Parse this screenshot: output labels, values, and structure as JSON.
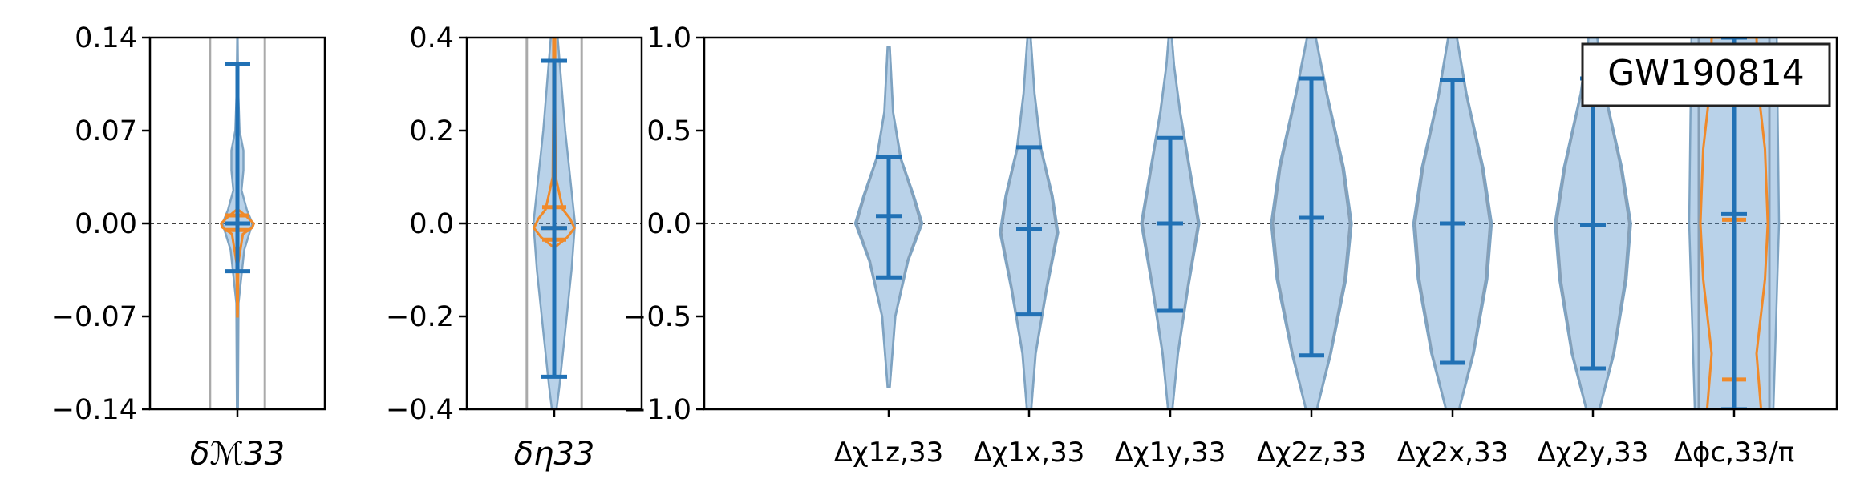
{
  "figure_label": "GW190814",
  "colors": {
    "violin_fill": "#4f8fc7",
    "violin_edge": "#7ea3c2",
    "bar": "#2171b5",
    "orange": "#f08a2a",
    "grey": "#aaaaaa",
    "zero_line": "#000000"
  },
  "chart_data": [
    {
      "type": "violin",
      "panel": "chirp-mass",
      "title": "",
      "xlabel": "",
      "ylabel": "",
      "categories": [
        "δℳ33"
      ],
      "ylim": [
        -0.14,
        0.14
      ],
      "yticks": [
        "0.14",
        "0.07",
        "0.00",
        "−0.07",
        "−0.14"
      ],
      "reference_line_y": 0,
      "violins": [
        {
          "blue": {
            "min": -0.036,
            "median": 0.0,
            "max": 0.12,
            "width_profile": [
              [
                -0.14,
                0.02
              ],
              [
                -0.06,
                0.04
              ],
              [
                -0.02,
                0.25
              ],
              [
                0.0,
                0.55
              ],
              [
                0.01,
                0.35
              ],
              [
                0.025,
                0.15
              ],
              [
                0.04,
                0.22
              ],
              [
                0.055,
                0.22
              ],
              [
                0.07,
                0.08
              ],
              [
                0.1,
                0.03
              ],
              [
                0.14,
                0.01
              ]
            ]
          },
          "orange": {
            "min": -0.005,
            "median": 0.0,
            "max": 0.006,
            "width_profile": [
              [
                -0.07,
                0.01
              ],
              [
                -0.03,
                0.03
              ],
              [
                -0.008,
                0.2
              ],
              [
                -0.003,
                0.55
              ],
              [
                0.0,
                0.6
              ],
              [
                0.004,
                0.4
              ],
              [
                0.01,
                0.05
              ]
            ]
          },
          "grey_width": 0.95
        }
      ]
    },
    {
      "type": "violin",
      "panel": "symmetric-mass-ratio",
      "title": "",
      "xlabel": "",
      "ylabel": "",
      "categories": [
        "δη33"
      ],
      "ylim": [
        -0.4,
        0.4
      ],
      "yticks": [
        "0.4",
        "0.2",
        "0.0",
        "−0.2",
        "−0.4"
      ],
      "reference_line_y": 0,
      "violins": [
        {
          "blue": {
            "min": -0.33,
            "median": -0.01,
            "max": 0.35,
            "width_profile": [
              [
                -0.4,
                0.08
              ],
              [
                -0.35,
                0.18
              ],
              [
                -0.25,
                0.35
              ],
              [
                -0.1,
                0.6
              ],
              [
                0.0,
                0.72
              ],
              [
                0.1,
                0.55
              ],
              [
                0.2,
                0.38
              ],
              [
                0.3,
                0.25
              ],
              [
                0.4,
                0.12
              ]
            ]
          },
          "orange": {
            "min": -0.035,
            "median": -0.01,
            "max": 0.035,
            "width_profile": [
              [
                -0.05,
                0.05
              ],
              [
                -0.03,
                0.45
              ],
              [
                -0.01,
                0.7
              ],
              [
                0.01,
                0.55
              ],
              [
                0.03,
                0.3
              ],
              [
                0.1,
                0.05
              ],
              [
                0.25,
                0.03
              ],
              [
                0.4,
                0.03
              ]
            ]
          },
          "grey_width": 0.95
        }
      ]
    },
    {
      "type": "violin",
      "panel": "spin-and-phase",
      "title": "",
      "xlabel": "",
      "ylabel": "",
      "categories": [
        "Δχ1z,33",
        "Δχ1x,33",
        "Δχ1y,33",
        "Δχ2z,33",
        "Δχ2x,33",
        "Δχ2y,33",
        "Δϕc,33/π"
      ],
      "ylim": [
        -1.0,
        1.0
      ],
      "yticks": [
        "1.0",
        "0.5",
        "0.0",
        "−0.5",
        "−1.0"
      ],
      "reference_line_y": 0,
      "violins": [
        {
          "blue": {
            "min": -0.29,
            "median": 0.04,
            "max": 0.36,
            "width_profile": [
              [
                -0.88,
                0.02
              ],
              [
                -0.5,
                0.12
              ],
              [
                -0.2,
                0.35
              ],
              [
                0.0,
                0.6
              ],
              [
                0.15,
                0.45
              ],
              [
                0.35,
                0.22
              ],
              [
                0.6,
                0.08
              ],
              [
                0.95,
                0.02
              ]
            ]
          }
        },
        {
          "blue": {
            "min": -0.49,
            "median": -0.03,
            "max": 0.41,
            "width_profile": [
              [
                -1.0,
                0.04
              ],
              [
                -0.7,
                0.12
              ],
              [
                -0.35,
                0.32
              ],
              [
                -0.05,
                0.52
              ],
              [
                0.15,
                0.42
              ],
              [
                0.4,
                0.22
              ],
              [
                0.7,
                0.1
              ],
              [
                1.0,
                0.03
              ]
            ]
          }
        },
        {
          "blue": {
            "min": -0.47,
            "median": 0.0,
            "max": 0.46,
            "width_profile": [
              [
                -1.0,
                0.04
              ],
              [
                -0.7,
                0.14
              ],
              [
                -0.35,
                0.32
              ],
              [
                0.0,
                0.52
              ],
              [
                0.3,
                0.35
              ],
              [
                0.6,
                0.18
              ],
              [
                0.85,
                0.07
              ],
              [
                1.0,
                0.03
              ]
            ]
          }
        },
        {
          "blue": {
            "min": -0.71,
            "median": 0.03,
            "max": 0.78,
            "width_profile": [
              [
                -1.0,
                0.1
              ],
              [
                -0.7,
                0.35
              ],
              [
                -0.3,
                0.62
              ],
              [
                0.0,
                0.72
              ],
              [
                0.3,
                0.58
              ],
              [
                0.7,
                0.28
              ],
              [
                1.0,
                0.08
              ]
            ]
          }
        },
        {
          "blue": {
            "min": -0.75,
            "median": 0.0,
            "max": 0.77,
            "width_profile": [
              [
                -1.0,
                0.12
              ],
              [
                -0.7,
                0.38
              ],
              [
                -0.3,
                0.62
              ],
              [
                0.0,
                0.7
              ],
              [
                0.3,
                0.55
              ],
              [
                0.7,
                0.25
              ],
              [
                1.0,
                0.08
              ]
            ]
          }
        },
        {
          "blue": {
            "min": -0.78,
            "median": -0.01,
            "max": 0.78,
            "width_profile": [
              [
                -1.0,
                0.12
              ],
              [
                -0.7,
                0.38
              ],
              [
                -0.3,
                0.6
              ],
              [
                0.0,
                0.68
              ],
              [
                0.3,
                0.52
              ],
              [
                0.7,
                0.22
              ],
              [
                1.0,
                0.08
              ]
            ]
          }
        },
        {
          "blue": {
            "min": -1.0,
            "median": 0.05,
            "max": 1.0,
            "width_profile": [
              [
                -1.0,
                0.7
              ],
              [
                -0.5,
                0.75
              ],
              [
                0.0,
                0.8
              ],
              [
                0.5,
                0.78
              ],
              [
                1.0,
                0.76
              ]
            ]
          },
          "orange": {
            "min": -0.84,
            "median": 0.02,
            "max": 1.0,
            "width_profile": [
              [
                -1.0,
                0.48
              ],
              [
                -0.7,
                0.4
              ],
              [
                -0.3,
                0.55
              ],
              [
                0.0,
                0.6
              ],
              [
                0.4,
                0.55
              ],
              [
                0.75,
                0.42
              ],
              [
                1.0,
                0.4
              ]
            ]
          },
          "grey_width": 1.0
        }
      ]
    }
  ]
}
